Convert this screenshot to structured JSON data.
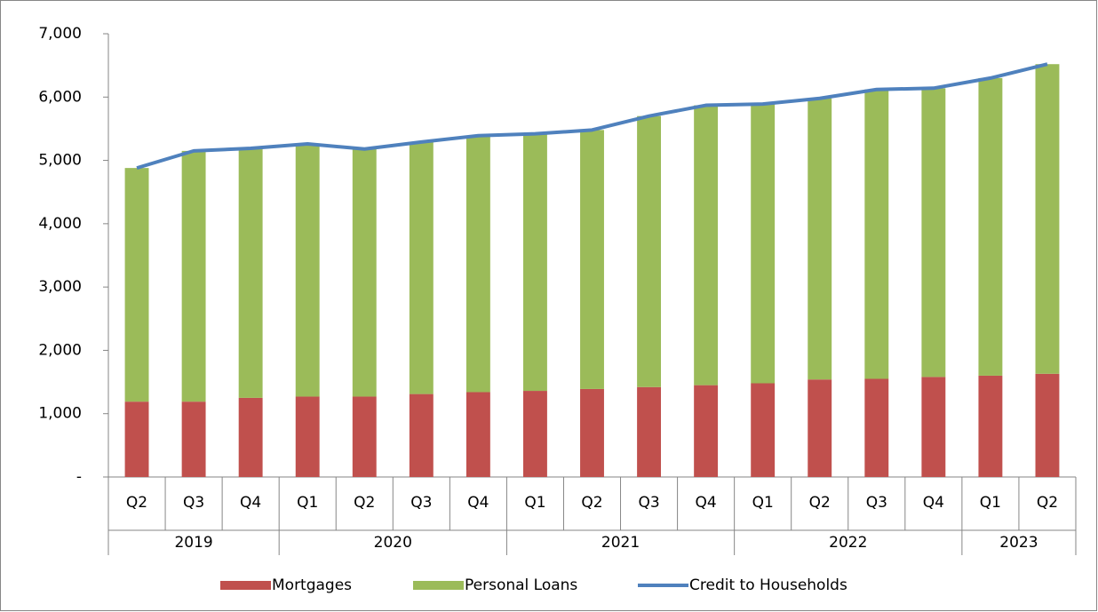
{
  "chart_data": {
    "type": "stacked-bar-line",
    "categories": [
      "Q2",
      "Q3",
      "Q4",
      "Q1",
      "Q2",
      "Q3",
      "Q4",
      "Q1",
      "Q2",
      "Q3",
      "Q4",
      "Q1",
      "Q2",
      "Q3",
      "Q4",
      "Q1",
      "Q2"
    ],
    "category_groups": [
      {
        "label": "2019",
        "size": 3
      },
      {
        "label": "2020",
        "size": 4
      },
      {
        "label": "2021",
        "size": 4
      },
      {
        "label": "2022",
        "size": 4
      },
      {
        "label": "2023",
        "size": 2
      }
    ],
    "series": [
      {
        "name": "Mortgages",
        "type": "bar",
        "color": "#c0504d",
        "values": [
          1190,
          1190,
          1250,
          1270,
          1270,
          1310,
          1340,
          1360,
          1390,
          1420,
          1450,
          1480,
          1540,
          1550,
          1580,
          1600,
          1630
        ]
      },
      {
        "name": "Personal Loans",
        "type": "bar",
        "color": "#9bbb59",
        "values": [
          3690,
          3960,
          3940,
          3990,
          3910,
          3980,
          4050,
          4060,
          4090,
          4280,
          4420,
          4410,
          4440,
          4570,
          4560,
          4700,
          4890
        ]
      },
      {
        "name": "Credit to Households",
        "type": "line",
        "color": "#4f81bd",
        "values": [
          4880,
          5150,
          5190,
          5260,
          5180,
          5290,
          5390,
          5420,
          5480,
          5700,
          5870,
          5890,
          5980,
          6120,
          6140,
          6300,
          6520
        ]
      }
    ],
    "ylim": [
      0,
      7000
    ],
    "yticks": [
      {
        "value": 0,
        "label": "-"
      },
      {
        "value": 1000,
        "label": "1,000"
      },
      {
        "value": 2000,
        "label": "2,000"
      },
      {
        "value": 3000,
        "label": "3,000"
      },
      {
        "value": 4000,
        "label": "4,000"
      },
      {
        "value": 5000,
        "label": "5,000"
      },
      {
        "value": 6000,
        "label": "6,000"
      },
      {
        "value": 7000,
        "label": "7,000"
      }
    ],
    "legend": "bottom"
  }
}
